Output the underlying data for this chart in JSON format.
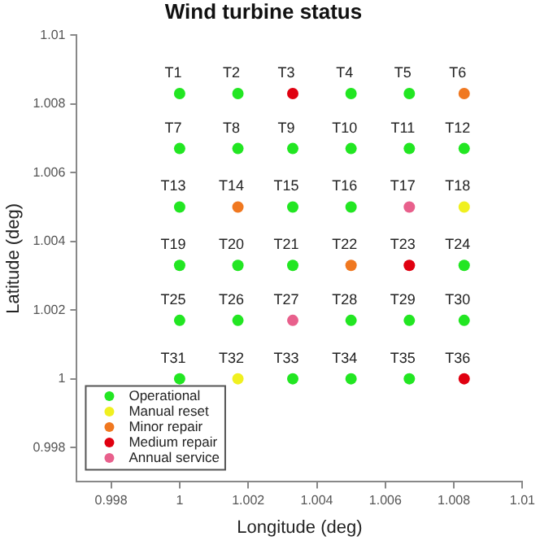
{
  "chart_data": {
    "type": "scatter",
    "title": "Wind turbine status",
    "xlabel": "Longitude (deg)",
    "ylabel": "Latitude (deg)",
    "xlim": [
      0.997,
      1.01
    ],
    "ylim": [
      0.997,
      1.01
    ],
    "xticks": [
      0.998,
      1,
      1.002,
      1.004,
      1.006,
      1.008,
      1.01
    ],
    "yticks": [
      0.998,
      1,
      1.002,
      1.004,
      1.006,
      1.008,
      1.01
    ],
    "grid": false,
    "legend": "bottom left",
    "marker": "circle",
    "series": [
      {
        "name": "Operational",
        "color": "#22e622",
        "x": [
          1,
          1.0017,
          1.005,
          1.0067,
          1,
          1.0017,
          1.0033,
          1.005,
          1.0067,
          1.0083,
          1,
          1.0033,
          1.005,
          1,
          1.0017,
          1.0033,
          1.0083,
          1,
          1.0017,
          1.005,
          1.0067,
          1.0083,
          1,
          1.0033,
          1.005,
          1.0067
        ],
        "values": [
          1.0083,
          1.0083,
          1.0083,
          1.0083,
          1.0067,
          1.0067,
          1.0067,
          1.0067,
          1.0067,
          1.0067,
          1.005,
          1.005,
          1.005,
          1.0033,
          1.0033,
          1.0033,
          1.0033,
          1.0017,
          1.0017,
          1.0017,
          1.0017,
          1.0017,
          1,
          1,
          1,
          1
        ]
      },
      {
        "name": "Manual reset",
        "color": "#f0f020",
        "x": [
          1.0083,
          1.0017
        ],
        "values": [
          1.005,
          1
        ]
      },
      {
        "name": "Minor repair",
        "color": "#f07820",
        "x": [
          1.0083,
          1.0017,
          1.005
        ],
        "values": [
          1.0083,
          1.005,
          1.0033
        ]
      },
      {
        "name": "Medium repair",
        "color": "#e00010",
        "x": [
          1.0033,
          1.0067,
          1.0083
        ],
        "values": [
          1.0083,
          1.0033,
          1
        ]
      },
      {
        "name": "Annual service",
        "color": "#e8608c",
        "x": [
          1.0067,
          1.0033
        ],
        "values": [
          1.005,
          1.0017
        ]
      }
    ],
    "annotations": [
      {
        "text": "T1",
        "x": 1,
        "y": 1.0083
      },
      {
        "text": "T2",
        "x": 1.0017,
        "y": 1.0083
      },
      {
        "text": "T3",
        "x": 1.0033,
        "y": 1.0083
      },
      {
        "text": "T4",
        "x": 1.005,
        "y": 1.0083
      },
      {
        "text": "T5",
        "x": 1.0067,
        "y": 1.0083
      },
      {
        "text": "T6",
        "x": 1.0083,
        "y": 1.0083
      },
      {
        "text": "T7",
        "x": 1,
        "y": 1.0067
      },
      {
        "text": "T8",
        "x": 1.0017,
        "y": 1.0067
      },
      {
        "text": "T9",
        "x": 1.0033,
        "y": 1.0067
      },
      {
        "text": "T10",
        "x": 1.005,
        "y": 1.0067
      },
      {
        "text": "T11",
        "x": 1.0067,
        "y": 1.0067
      },
      {
        "text": "T12",
        "x": 1.0083,
        "y": 1.0067
      },
      {
        "text": "T13",
        "x": 1,
        "y": 1.005
      },
      {
        "text": "T14",
        "x": 1.0017,
        "y": 1.005
      },
      {
        "text": "T15",
        "x": 1.0033,
        "y": 1.005
      },
      {
        "text": "T16",
        "x": 1.005,
        "y": 1.005
      },
      {
        "text": "T17",
        "x": 1.0067,
        "y": 1.005
      },
      {
        "text": "T18",
        "x": 1.0083,
        "y": 1.005
      },
      {
        "text": "T19",
        "x": 1,
        "y": 1.0033
      },
      {
        "text": "T20",
        "x": 1.0017,
        "y": 1.0033
      },
      {
        "text": "T21",
        "x": 1.0033,
        "y": 1.0033
      },
      {
        "text": "T22",
        "x": 1.005,
        "y": 1.0033
      },
      {
        "text": "T23",
        "x": 1.0067,
        "y": 1.0033
      },
      {
        "text": "T24",
        "x": 1.0083,
        "y": 1.0033
      },
      {
        "text": "T25",
        "x": 1,
        "y": 1.0017
      },
      {
        "text": "T26",
        "x": 1.0017,
        "y": 1.0017
      },
      {
        "text": "T27",
        "x": 1.0033,
        "y": 1.0017
      },
      {
        "text": "T28",
        "x": 1.005,
        "y": 1.0017
      },
      {
        "text": "T29",
        "x": 1.0067,
        "y": 1.0017
      },
      {
        "text": "T30",
        "x": 1.0083,
        "y": 1.0017
      },
      {
        "text": "T31",
        "x": 1,
        "y": 1
      },
      {
        "text": "T32",
        "x": 1.0017,
        "y": 1
      },
      {
        "text": "T33",
        "x": 1.0033,
        "y": 1
      },
      {
        "text": "T34",
        "x": 1.005,
        "y": 1
      },
      {
        "text": "T35",
        "x": 1.0067,
        "y": 1
      },
      {
        "text": "T36",
        "x": 1.0083,
        "y": 1
      }
    ]
  }
}
